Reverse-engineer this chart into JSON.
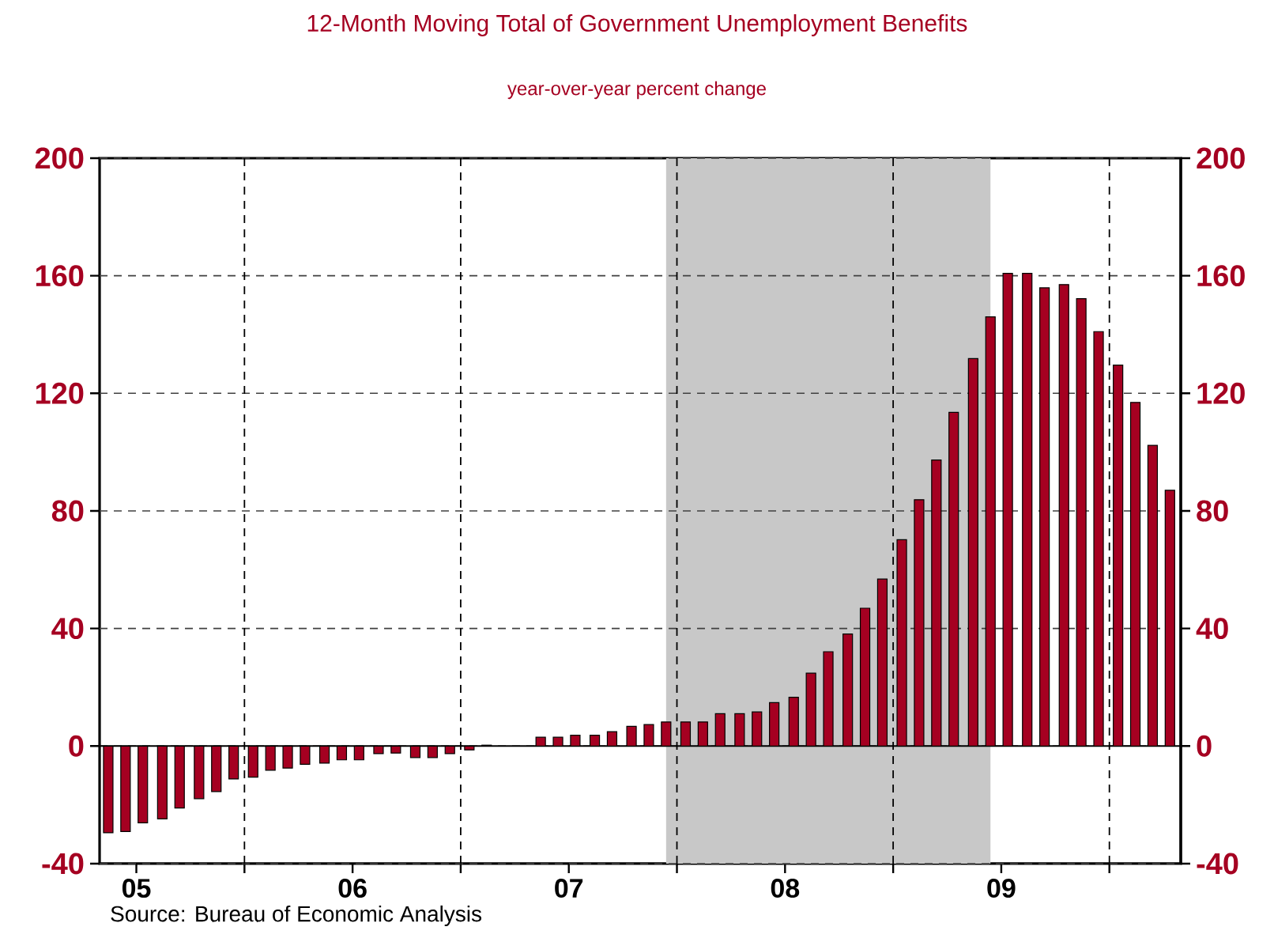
{
  "chart_data": {
    "type": "bar",
    "title": "12-Month Moving Total of Government Unemployment Benefits",
    "subtitle": "year-over-year percent change",
    "annotations": [
      "Source:  Bureau of Economic Analysis"
    ],
    "x": [
      "2005-05-15",
      "2005-06-15",
      "2005-07-15",
      "2005-08-15",
      "2005-09-15",
      "2005-10-15",
      "2005-11-15",
      "2005-12-15",
      "2006-01-15",
      "2006-02-15",
      "2006-03-15",
      "2006-04-15",
      "2006-05-15",
      "2006-06-15",
      "2006-07-15",
      "2006-08-15",
      "2006-09-15",
      "2006-10-15",
      "2006-11-15",
      "2006-12-15",
      "2007-01-15",
      "2007-02-15",
      "2007-03-15",
      "2007-04-15",
      "2007-05-15",
      "2007-06-15",
      "2007-07-15",
      "2007-08-15",
      "2007-09-15",
      "2007-10-15",
      "2007-11-15",
      "2007-12-15",
      "2008-01-15",
      "2008-02-15",
      "2008-03-15",
      "2008-04-15",
      "2008-05-15",
      "2008-06-15",
      "2008-07-15",
      "2008-08-15",
      "2008-09-15",
      "2008-10-15",
      "2008-11-15",
      "2008-12-15",
      "2009-01-15",
      "2009-02-15",
      "2009-03-15",
      "2009-04-15",
      "2009-05-15",
      "2009-06-15",
      "2009-07-15",
      "2009-08-15",
      "2009-09-15",
      "2009-10-15",
      "2009-11-15",
      "2009-12-15",
      "2010-01-15",
      "2010-02-15",
      "2010-03-15",
      "2010-04-15"
    ],
    "values": [
      -29.5,
      -29.1,
      -26.1,
      -24.8,
      -21.1,
      -17.9,
      -15.5,
      -11.2,
      -10.6,
      -8.2,
      -7.5,
      -6.2,
      -5.8,
      -4.7,
      -4.7,
      -2.6,
      -2.4,
      -3.9,
      -3.9,
      -2.6,
      -1.3,
      0.3,
      null,
      null,
      3.0,
      3.0,
      3.7,
      3.7,
      4.9,
      6.7,
      7.3,
      8.2,
      8.2,
      8.2,
      11.0,
      11.0,
      11.6,
      14.8,
      16.6,
      24.8,
      32.1,
      38.1,
      46.9,
      56.8,
      70.2,
      83.8,
      97.3,
      113.5,
      131.8,
      146.0,
      160.8,
      160.8,
      155.9,
      157.0,
      152.2,
      141.0,
      129.6,
      116.9,
      102.3,
      87.0
    ],
    "color": "#a50021",
    "xlim": [
      "2005-05-01",
      "2010-05-01"
    ],
    "xticks": [
      {
        "value": "2006-01-01",
        "label": null
      },
      {
        "value": "2007-01-01",
        "label": null
      },
      {
        "value": "2008-01-01",
        "label": null
      },
      {
        "value": "2009-01-01",
        "label": null
      },
      {
        "value": "2010-01-01",
        "label": null
      },
      {
        "value": "2005-07-01",
        "label": "05"
      },
      {
        "value": "2006-07-01",
        "label": "06"
      },
      {
        "value": "2007-07-01",
        "label": "07"
      },
      {
        "value": "2008-07-01",
        "label": "08"
      },
      {
        "value": "2009-07-01",
        "label": "09"
      }
    ],
    "ylim": [
      -40,
      200
    ],
    "yticks": [
      -40,
      0,
      40,
      80,
      120,
      160,
      200
    ],
    "y2lim": [
      -40,
      200
    ],
    "y2ticks": [
      -40,
      0,
      40,
      80,
      120,
      160,
      200
    ],
    "grid": "y",
    "bands": [
      {
        "axis": "x",
        "from": "2007-12-15",
        "to": "2009-06-15",
        "color": "#c8c8c8"
      }
    ],
    "ref_lines": [
      {
        "axis": "y",
        "value": 0,
        "line_style": "solid"
      },
      {
        "axis": "x",
        "value": "2006-01-01",
        "line_style": "dashed"
      },
      {
        "axis": "x",
        "value": "2007-01-01",
        "line_style": "dashed"
      },
      {
        "axis": "x",
        "value": "2008-01-01",
        "line_style": "dashed"
      },
      {
        "axis": "x",
        "value": "2009-01-01",
        "line_style": "dashed"
      },
      {
        "axis": "x",
        "value": "2010-01-01",
        "line_style": "dashed"
      }
    ]
  }
}
